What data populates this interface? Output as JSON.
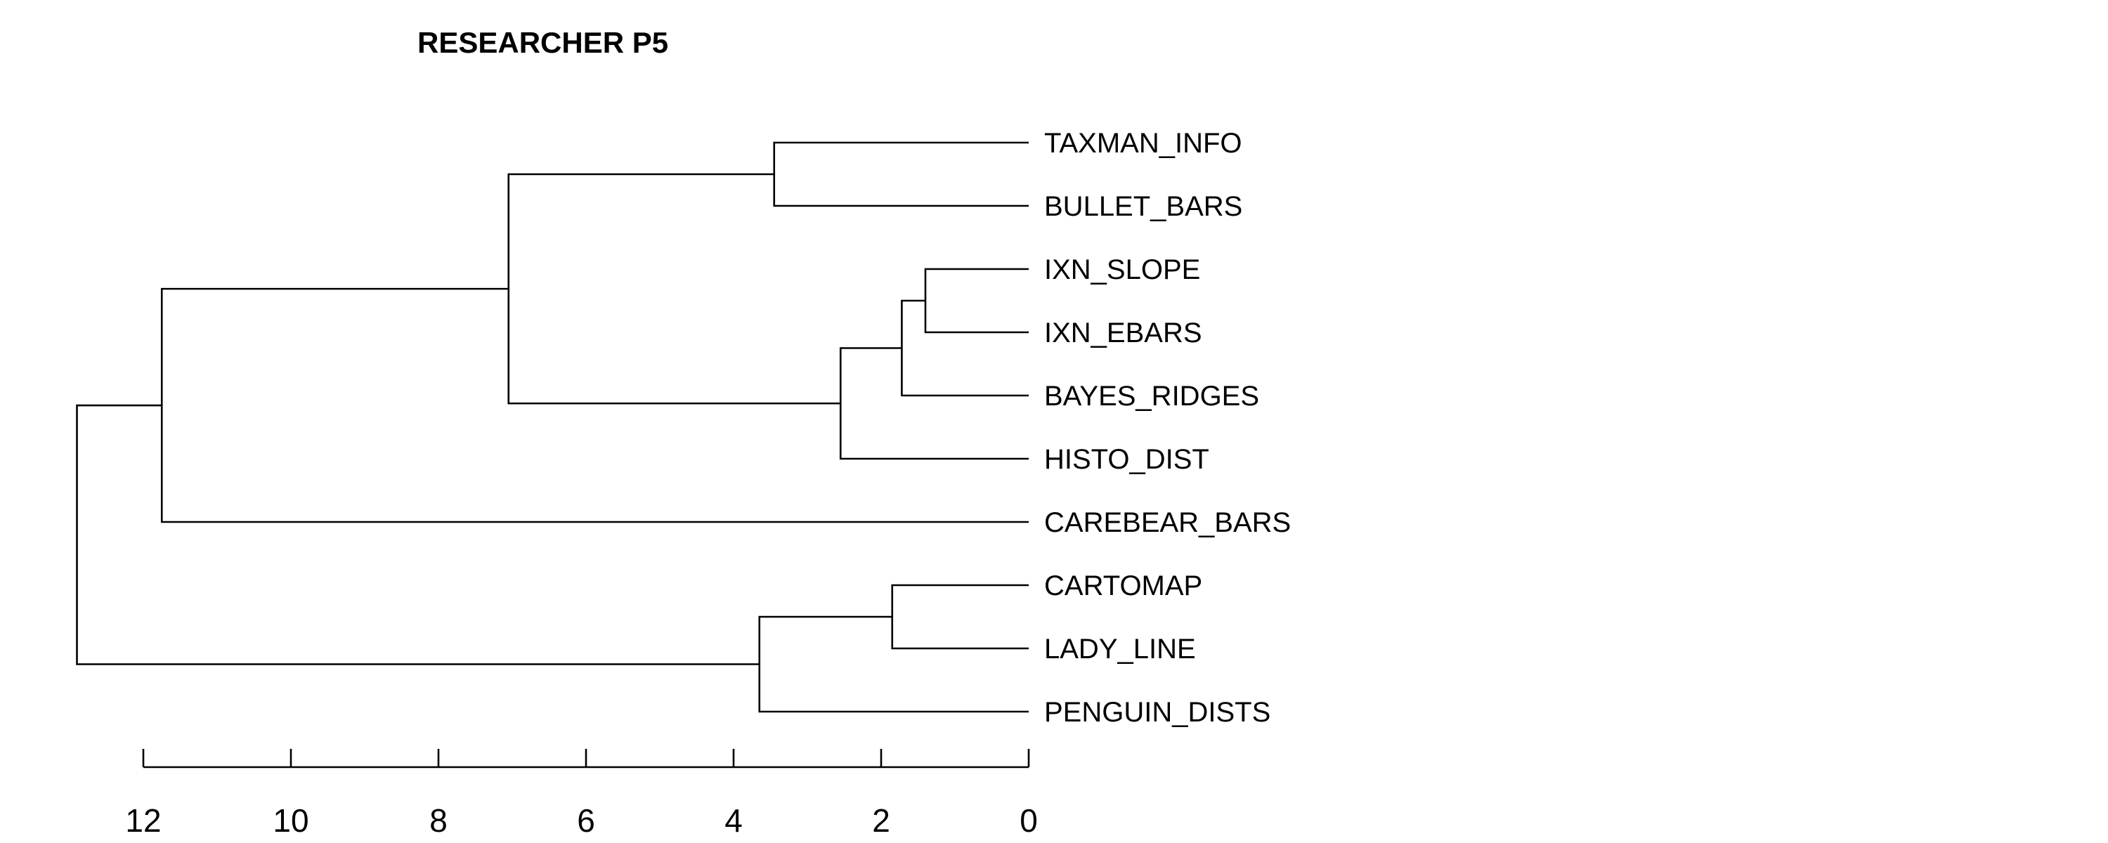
{
  "chart_data": {
    "type": "dendrogram",
    "title": "RESEARCHER P5",
    "orientation": "horizontal",
    "leaves": [
      "TAXMAN_INFO",
      "BULLET_BARS",
      "IXN_SLOPE",
      "IXN_EBARS",
      "BAYES_RIDGES",
      "HISTO_DIST",
      "CAREBEAR_BARS",
      "CARTOMAP",
      "LADY_LINE",
      "PENGUIN_DISTS"
    ],
    "merges": [
      {
        "a": "IXN_SLOPE",
        "b": "IXN_EBARS",
        "height": 1.4
      },
      {
        "a": "CARTOMAP",
        "b": "LADY_LINE",
        "height": 1.85
      },
      {
        "a": 0,
        "b": "BAYES_RIDGES",
        "height": 1.72
      },
      {
        "a": 2,
        "b": "HISTO_DIST",
        "height": 2.55
      },
      {
        "a": "TAXMAN_INFO",
        "b": "BULLET_BARS",
        "height": 3.45
      },
      {
        "a": 1,
        "b": "PENGUIN_DISTS",
        "height": 3.65
      },
      {
        "a": 4,
        "b": 3,
        "height": 7.05
      },
      {
        "a": 6,
        "b": "CAREBEAR_BARS",
        "height": 11.75
      },
      {
        "a": 7,
        "b": 5,
        "height": 12.9
      }
    ],
    "xaxis": {
      "ticks": [
        12,
        10,
        8,
        6,
        4,
        2,
        0
      ],
      "range": [
        0,
        12
      ]
    }
  }
}
